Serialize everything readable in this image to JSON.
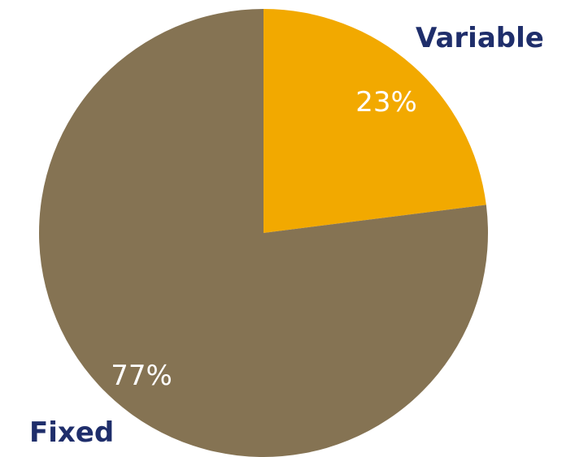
{
  "chart_data": {
    "type": "pie",
    "categories": [
      "Variable",
      "Fixed"
    ],
    "values": [
      23,
      77
    ],
    "value_labels": [
      "23%",
      "77%"
    ],
    "colors": [
      "#f2a900",
      "#857353"
    ],
    "label_color": "#ffffff",
    "category_label_color": "#1f2e6b",
    "start_angle": "12 o'clock",
    "direction": "clockwise"
  }
}
